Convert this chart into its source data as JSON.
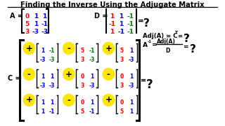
{
  "title": "Finding the Inverse Using the Adjugate Matrix",
  "bg_color": "#ffffff",
  "yellow": "#FFE800",
  "matrix_A": [
    [
      "0",
      "1",
      "1"
    ],
    [
      "5",
      "1",
      "-1"
    ],
    [
      "3",
      "-3",
      "-3"
    ]
  ],
  "matrix_D": [
    [
      "1",
      "1",
      "-1"
    ],
    [
      "-1",
      "1",
      "-1"
    ],
    [
      "1",
      "-1",
      "-1"
    ]
  ],
  "signs": [
    [
      "+",
      "-",
      "+"
    ],
    [
      "-",
      "+",
      "-"
    ],
    [
      "+",
      "-",
      "+"
    ]
  ],
  "sub_data": [
    [
      [
        [
          1,
          -1
        ],
        [
          -3,
          -3
        ]
      ],
      [
        [
          5,
          -1
        ],
        [
          3,
          -3
        ]
      ],
      [
        [
          5,
          1
        ],
        [
          3,
          -3
        ]
      ]
    ],
    [
      [
        [
          1,
          1
        ],
        [
          -3,
          -3
        ]
      ],
      [
        [
          0,
          1
        ],
        [
          3,
          -3
        ]
      ],
      [
        [
          0,
          1
        ],
        [
          3,
          -3
        ]
      ]
    ],
    [
      [
        [
          1,
          1
        ],
        [
          1,
          -1
        ]
      ],
      [
        [
          0,
          1
        ],
        [
          5,
          -1
        ]
      ],
      [
        [
          0,
          1
        ],
        [
          5,
          1
        ]
      ]
    ]
  ],
  "sub_colors": [
    [
      [
        [
          "blue",
          "green"
        ],
        [
          "blue",
          "green"
        ]
      ],
      [
        [
          "red",
          "green"
        ],
        [
          "red",
          "green"
        ]
      ],
      [
        [
          "red",
          "blue"
        ],
        [
          "red",
          "blue"
        ]
      ]
    ],
    [
      [
        [
          "blue",
          "blue"
        ],
        [
          "blue",
          "blue"
        ]
      ],
      [
        [
          "red",
          "blue"
        ],
        [
          "red",
          "blue"
        ]
      ],
      [
        [
          "red",
          "blue"
        ],
        [
          "red",
          "blue"
        ]
      ]
    ],
    [
      [
        [
          "blue",
          "blue"
        ],
        [
          "blue",
          "blue"
        ]
      ],
      [
        [
          "red",
          "blue"
        ],
        [
          "red",
          "blue"
        ]
      ],
      [
        [
          "red",
          "blue"
        ],
        [
          "red",
          "blue"
        ]
      ]
    ]
  ]
}
